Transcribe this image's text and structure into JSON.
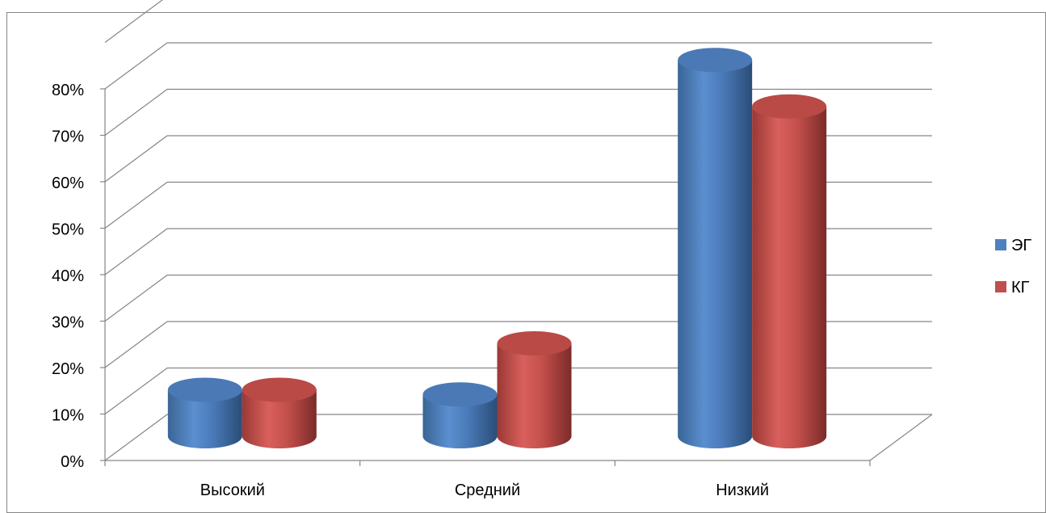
{
  "chart_data": {
    "type": "bar",
    "style": "3d-cylinder",
    "categories": [
      "Высокий",
      "Средний",
      "Низкий"
    ],
    "series": [
      {
        "name": "ЭГ",
        "values": [
          10,
          9,
          81
        ],
        "color": "#4F81BD"
      },
      {
        "name": "КГ",
        "values": [
          10,
          20,
          71
        ],
        "color": "#C0504D"
      }
    ],
    "y_ticks": [
      "0%",
      "10%",
      "20%",
      "30%",
      "40%",
      "50%",
      "60%",
      "70%",
      "80%"
    ],
    "ylim": [
      0,
      80
    ],
    "y_unit": "%",
    "grid": true,
    "legend_position": "right"
  }
}
